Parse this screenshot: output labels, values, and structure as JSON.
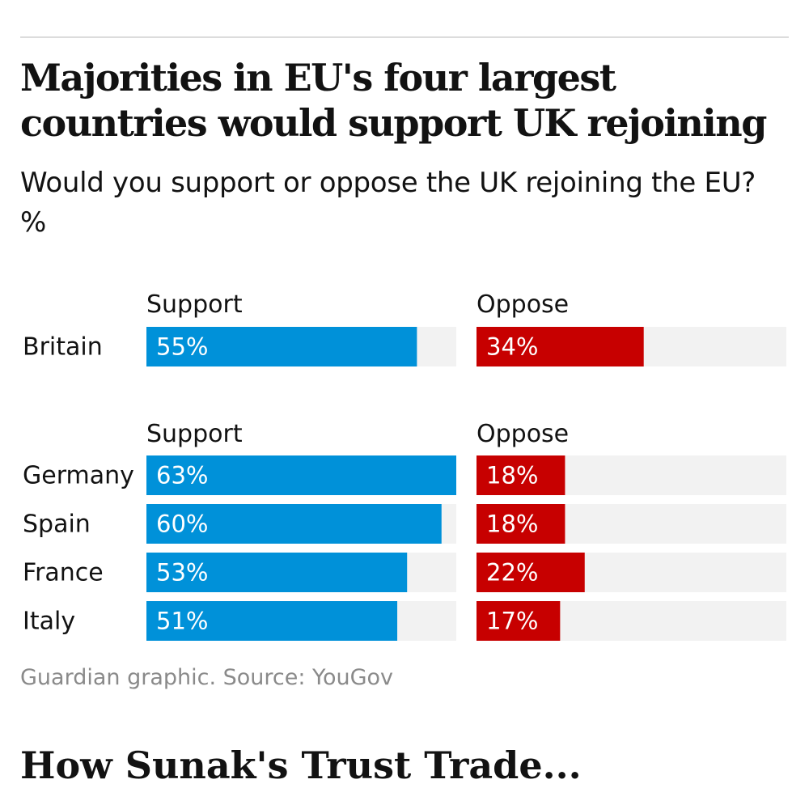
{
  "header": {
    "title": "Majorities in EU's four largest countries would support UK rejoining",
    "subtitle": "Would you support or oppose the UK rejoining the EU?",
    "unit": "%"
  },
  "chart_data": {
    "type": "bar",
    "title": "Majorities in EU's four largest countries would support UK rejoining",
    "subtitle": "Would you support or oppose the UK rejoining the EU?",
    "unit": "%",
    "xlim": [
      0,
      63
    ],
    "colors": {
      "support": "#0091d9",
      "oppose": "#c70000",
      "track": "#f2f2f2"
    },
    "groups": [
      {
        "support_label": "Support",
        "oppose_label": "Oppose",
        "rows": [
          {
            "country": "Britain",
            "support": 55,
            "oppose": 34,
            "support_text": "55%",
            "oppose_text": "34%"
          }
        ]
      },
      {
        "support_label": "Support",
        "oppose_label": "Oppose",
        "rows": [
          {
            "country": "Germany",
            "support": 63,
            "oppose": 18,
            "support_text": "63%",
            "oppose_text": "18%"
          },
          {
            "country": "Spain",
            "support": 60,
            "oppose": 18,
            "support_text": "60%",
            "oppose_text": "18%"
          },
          {
            "country": "France",
            "support": 53,
            "oppose": 22,
            "support_text": "53%",
            "oppose_text": "22%"
          },
          {
            "country": "Italy",
            "support": 51,
            "oppose": 17,
            "support_text": "51%",
            "oppose_text": "17%"
          }
        ]
      }
    ]
  },
  "footer": {
    "source": "Guardian graphic. Source: YouGov"
  },
  "next_article": {
    "heading": "How Sunak's Trust Trade..."
  }
}
